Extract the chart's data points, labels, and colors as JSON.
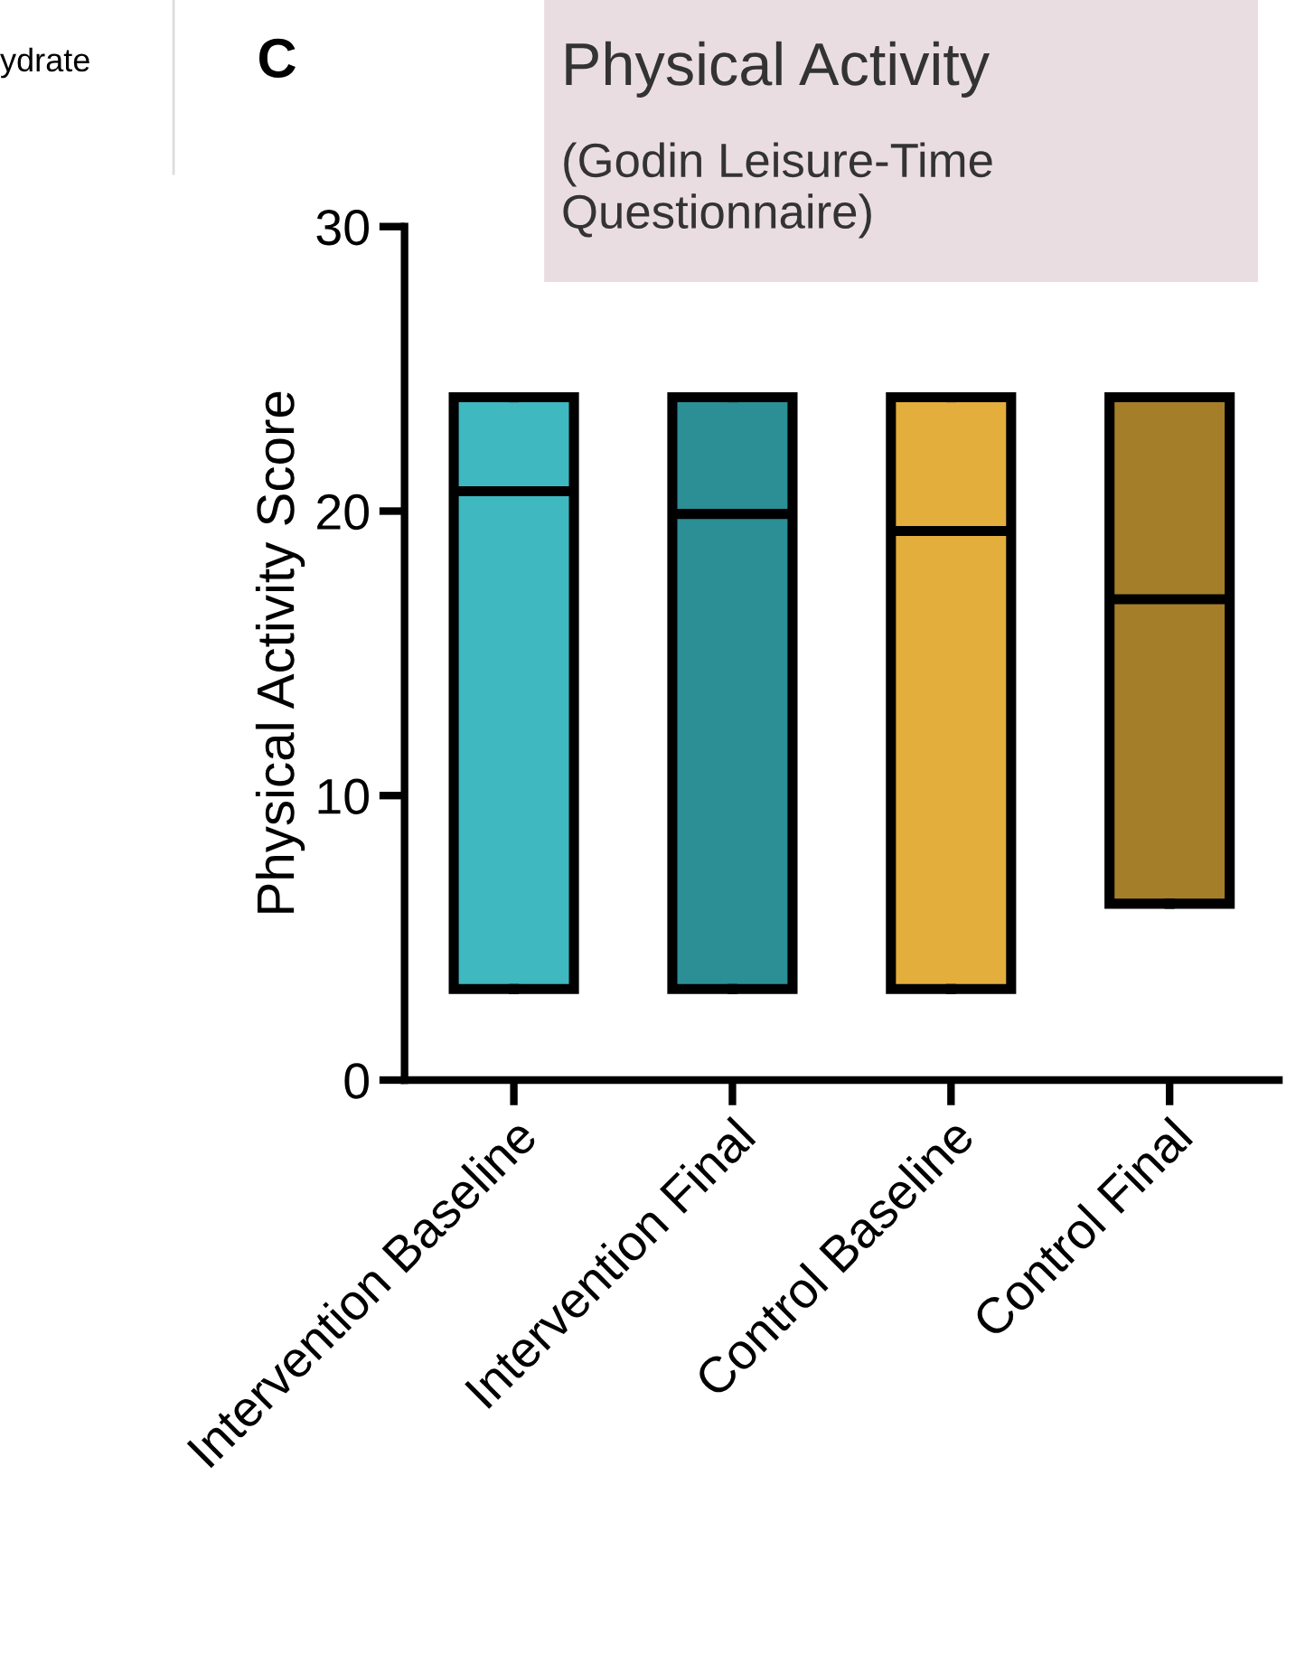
{
  "chart_data": {
    "type": "box",
    "title": "Physical Activity",
    "subtitle": "(Godin Leisure-Time Questionnaire)",
    "ylabel": "Physical Activity Score",
    "categories": [
      "Intervention Baseline",
      "Intervention Final",
      "Control Baseline",
      "Control Final"
    ],
    "boxes": [
      {
        "low": 3.2,
        "q1": 3.2,
        "median": 20.7,
        "q3": 24,
        "high": 24
      },
      {
        "low": 3.2,
        "q1": 3.2,
        "median": 19.9,
        "q3": 24,
        "high": 24
      },
      {
        "low": 3.2,
        "q1": 3.2,
        "median": 19.3,
        "q3": 24,
        "high": 24
      },
      {
        "low": 6.2,
        "q1": 6.2,
        "median": 16.9,
        "q3": 24,
        "high": 24
      }
    ],
    "colors": [
      "#3fb8c0",
      "#2b8f95",
      "#e3ae3c",
      "#a57e2a"
    ],
    "ylim": [
      0,
      30
    ],
    "yticks": [
      0,
      10,
      20,
      30
    ],
    "grid": false,
    "annotations": [
      "C",
      "ydrate"
    ]
  }
}
